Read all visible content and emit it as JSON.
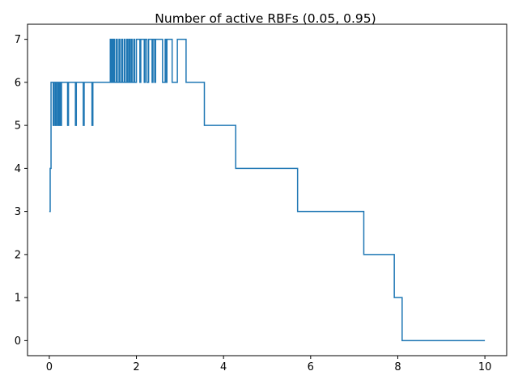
{
  "chart_data": {
    "type": "line",
    "title": "Number of active RBFs (0.05, 0.95)",
    "xlabel": "",
    "ylabel": "",
    "xlim": [
      -0.5,
      10.5
    ],
    "ylim": [
      -0.35,
      7.35
    ],
    "x_ticks": [
      0,
      2,
      4,
      6,
      8,
      10
    ],
    "y_ticks": [
      0,
      1,
      2,
      3,
      4,
      5,
      6,
      7
    ],
    "grid": false,
    "legend": "none",
    "line_color": "#1f77b4",
    "series": [
      {
        "drawstyle": "steps-post",
        "points": [
          [
            0.0,
            3
          ],
          [
            0.02,
            4
          ],
          [
            0.04,
            6
          ],
          [
            0.09,
            5
          ],
          [
            0.11,
            6
          ],
          [
            0.14,
            5
          ],
          [
            0.16,
            6
          ],
          [
            0.19,
            5
          ],
          [
            0.2,
            6
          ],
          [
            0.21,
            5
          ],
          [
            0.22,
            6
          ],
          [
            0.23,
            5
          ],
          [
            0.25,
            6
          ],
          [
            0.26,
            5
          ],
          [
            0.28,
            6
          ],
          [
            0.42,
            5
          ],
          [
            0.44,
            6
          ],
          [
            0.6,
            5
          ],
          [
            0.62,
            6
          ],
          [
            0.78,
            5
          ],
          [
            0.8,
            6
          ],
          [
            0.98,
            5
          ],
          [
            1.0,
            6
          ],
          [
            1.4,
            7
          ],
          [
            1.42,
            6
          ],
          [
            1.44,
            7
          ],
          [
            1.46,
            6
          ],
          [
            1.48,
            7
          ],
          [
            1.5,
            6
          ],
          [
            1.54,
            7
          ],
          [
            1.56,
            6
          ],
          [
            1.6,
            7
          ],
          [
            1.62,
            6
          ],
          [
            1.66,
            7
          ],
          [
            1.68,
            6
          ],
          [
            1.72,
            7
          ],
          [
            1.74,
            6
          ],
          [
            1.78,
            7
          ],
          [
            1.8,
            6
          ],
          [
            1.83,
            7
          ],
          [
            1.85,
            6
          ],
          [
            1.88,
            7
          ],
          [
            1.9,
            6
          ],
          [
            1.94,
            7
          ],
          [
            1.96,
            6
          ],
          [
            2.0,
            7
          ],
          [
            2.08,
            6
          ],
          [
            2.1,
            7
          ],
          [
            2.18,
            6
          ],
          [
            2.2,
            7
          ],
          [
            2.24,
            6
          ],
          [
            2.28,
            7
          ],
          [
            2.36,
            6
          ],
          [
            2.38,
            7
          ],
          [
            2.42,
            6
          ],
          [
            2.44,
            7
          ],
          [
            2.6,
            6
          ],
          [
            2.66,
            7
          ],
          [
            2.68,
            6
          ],
          [
            2.7,
            7
          ],
          [
            2.82,
            6
          ],
          [
            2.94,
            7
          ],
          [
            3.14,
            6
          ],
          [
            3.56,
            5
          ],
          [
            4.28,
            4
          ],
          [
            5.7,
            3
          ],
          [
            7.22,
            2
          ],
          [
            7.92,
            1
          ],
          [
            8.1,
            0
          ],
          [
            10.0,
            0
          ]
        ]
      }
    ]
  }
}
